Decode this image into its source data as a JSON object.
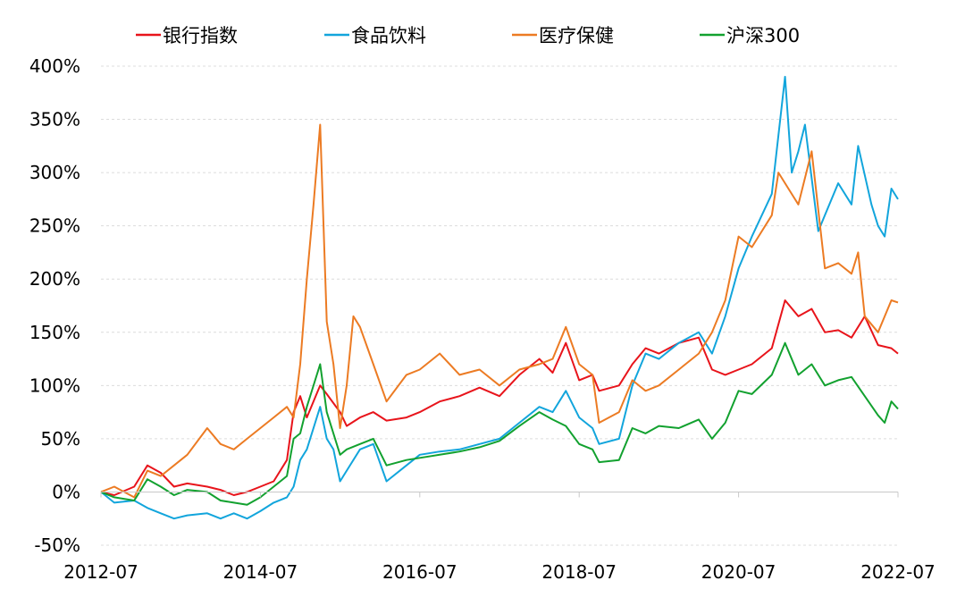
{
  "chart_data": {
    "type": "line",
    "title": "",
    "xlabel": "",
    "ylabel": "",
    "x_ticks": [
      "2012-07",
      "2014-07",
      "2016-07",
      "2018-07",
      "2020-07",
      "2022-07"
    ],
    "x_range": [
      "2012-07",
      "2022-07"
    ],
    "y_ticks": [
      "-50%",
      "0%",
      "50%",
      "100%",
      "150%",
      "200%",
      "250%",
      "300%",
      "350%",
      "400%"
    ],
    "ylim": [
      -50,
      400
    ],
    "y_unit": "%",
    "grid": "horizontal dashed",
    "legend": "top",
    "series": [
      {
        "name": "银行指数",
        "color": "#e8141b",
        "points": [
          [
            "2012-07",
            0
          ],
          [
            "2012-09",
            -3
          ],
          [
            "2012-12",
            5
          ],
          [
            "2013-02",
            25
          ],
          [
            "2013-04",
            18
          ],
          [
            "2013-06",
            5
          ],
          [
            "2013-08",
            8
          ],
          [
            "2013-11",
            5
          ],
          [
            "2014-01",
            2
          ],
          [
            "2014-03",
            -3
          ],
          [
            "2014-05",
            0
          ],
          [
            "2014-07",
            5
          ],
          [
            "2014-09",
            10
          ],
          [
            "2014-11",
            30
          ],
          [
            "2014-12",
            75
          ],
          [
            "2015-01",
            90
          ],
          [
            "2015-02",
            70
          ],
          [
            "2015-04",
            100
          ],
          [
            "2015-05",
            92
          ],
          [
            "2015-07",
            75
          ],
          [
            "2015-08",
            62
          ],
          [
            "2015-10",
            70
          ],
          [
            "2015-12",
            75
          ],
          [
            "2016-02",
            67
          ],
          [
            "2016-05",
            70
          ],
          [
            "2016-07",
            75
          ],
          [
            "2016-10",
            85
          ],
          [
            "2017-01",
            90
          ],
          [
            "2017-04",
            98
          ],
          [
            "2017-07",
            90
          ],
          [
            "2017-10",
            110
          ],
          [
            "2018-01",
            125
          ],
          [
            "2018-03",
            112
          ],
          [
            "2018-05",
            140
          ],
          [
            "2018-07",
            105
          ],
          [
            "2018-09",
            110
          ],
          [
            "2018-10",
            95
          ],
          [
            "2019-01",
            100
          ],
          [
            "2019-03",
            120
          ],
          [
            "2019-05",
            135
          ],
          [
            "2019-07",
            130
          ],
          [
            "2019-10",
            140
          ],
          [
            "2020-01",
            145
          ],
          [
            "2020-03",
            115
          ],
          [
            "2020-05",
            110
          ],
          [
            "2020-07",
            115
          ],
          [
            "2020-09",
            120
          ],
          [
            "2020-12",
            135
          ],
          [
            "2021-02",
            180
          ],
          [
            "2021-04",
            165
          ],
          [
            "2021-06",
            172
          ],
          [
            "2021-08",
            150
          ],
          [
            "2021-10",
            152
          ],
          [
            "2021-12",
            145
          ],
          [
            "2022-02",
            165
          ],
          [
            "2022-04",
            138
          ],
          [
            "2022-06",
            135
          ],
          [
            "2022-07",
            130
          ]
        ]
      },
      {
        "name": "食品饮料",
        "color": "#12a5dc",
        "points": [
          [
            "2012-07",
            0
          ],
          [
            "2012-09",
            -10
          ],
          [
            "2012-12",
            -8
          ],
          [
            "2013-02",
            -15
          ],
          [
            "2013-04",
            -20
          ],
          [
            "2013-06",
            -25
          ],
          [
            "2013-08",
            -22
          ],
          [
            "2013-11",
            -20
          ],
          [
            "2014-01",
            -25
          ],
          [
            "2014-03",
            -20
          ],
          [
            "2014-05",
            -25
          ],
          [
            "2014-07",
            -18
          ],
          [
            "2014-09",
            -10
          ],
          [
            "2014-11",
            -5
          ],
          [
            "2014-12",
            5
          ],
          [
            "2015-01",
            30
          ],
          [
            "2015-02",
            40
          ],
          [
            "2015-04",
            80
          ],
          [
            "2015-05",
            50
          ],
          [
            "2015-06",
            40
          ],
          [
            "2015-07",
            10
          ],
          [
            "2015-08",
            20
          ],
          [
            "2015-10",
            40
          ],
          [
            "2015-12",
            45
          ],
          [
            "2016-02",
            10
          ],
          [
            "2016-05",
            25
          ],
          [
            "2016-07",
            35
          ],
          [
            "2016-10",
            38
          ],
          [
            "2017-01",
            40
          ],
          [
            "2017-04",
            45
          ],
          [
            "2017-07",
            50
          ],
          [
            "2017-10",
            65
          ],
          [
            "2018-01",
            80
          ],
          [
            "2018-03",
            75
          ],
          [
            "2018-05",
            95
          ],
          [
            "2018-07",
            70
          ],
          [
            "2018-09",
            60
          ],
          [
            "2018-10",
            45
          ],
          [
            "2019-01",
            50
          ],
          [
            "2019-03",
            100
          ],
          [
            "2019-05",
            130
          ],
          [
            "2019-07",
            125
          ],
          [
            "2019-10",
            140
          ],
          [
            "2020-01",
            150
          ],
          [
            "2020-03",
            130
          ],
          [
            "2020-05",
            165
          ],
          [
            "2020-07",
            210
          ],
          [
            "2020-09",
            240
          ],
          [
            "2020-12",
            280
          ],
          [
            "2021-01",
            335
          ],
          [
            "2021-02",
            390
          ],
          [
            "2021-03",
            300
          ],
          [
            "2021-04",
            320
          ],
          [
            "2021-05",
            345
          ],
          [
            "2021-07",
            245
          ],
          [
            "2021-08",
            260
          ],
          [
            "2021-10",
            290
          ],
          [
            "2021-12",
            270
          ],
          [
            "2022-01",
            325
          ],
          [
            "2022-03",
            270
          ],
          [
            "2022-04",
            250
          ],
          [
            "2022-05",
            240
          ],
          [
            "2022-06",
            285
          ],
          [
            "2022-07",
            275
          ]
        ]
      },
      {
        "name": "医疗保健",
        "color": "#ec7b23",
        "points": [
          [
            "2012-07",
            0
          ],
          [
            "2012-09",
            5
          ],
          [
            "2012-12",
            -5
          ],
          [
            "2013-02",
            20
          ],
          [
            "2013-04",
            15
          ],
          [
            "2013-06",
            25
          ],
          [
            "2013-08",
            35
          ],
          [
            "2013-11",
            60
          ],
          [
            "2014-01",
            45
          ],
          [
            "2014-03",
            40
          ],
          [
            "2014-05",
            50
          ],
          [
            "2014-07",
            60
          ],
          [
            "2014-09",
            70
          ],
          [
            "2014-11",
            80
          ],
          [
            "2014-12",
            70
          ],
          [
            "2015-01",
            120
          ],
          [
            "2015-02",
            200
          ],
          [
            "2015-03",
            270
          ],
          [
            "2015-04",
            345
          ],
          [
            "2015-05",
            160
          ],
          [
            "2015-06",
            120
          ],
          [
            "2015-07",
            60
          ],
          [
            "2015-08",
            100
          ],
          [
            "2015-09",
            165
          ],
          [
            "2015-10",
            155
          ],
          [
            "2015-12",
            120
          ],
          [
            "2016-02",
            85
          ],
          [
            "2016-05",
            110
          ],
          [
            "2016-07",
            115
          ],
          [
            "2016-10",
            130
          ],
          [
            "2017-01",
            110
          ],
          [
            "2017-04",
            115
          ],
          [
            "2017-07",
            100
          ],
          [
            "2017-10",
            115
          ],
          [
            "2018-01",
            120
          ],
          [
            "2018-03",
            125
          ],
          [
            "2018-05",
            155
          ],
          [
            "2018-07",
            120
          ],
          [
            "2018-09",
            110
          ],
          [
            "2018-10",
            65
          ],
          [
            "2019-01",
            75
          ],
          [
            "2019-03",
            105
          ],
          [
            "2019-05",
            95
          ],
          [
            "2019-07",
            100
          ],
          [
            "2019-10",
            115
          ],
          [
            "2020-01",
            130
          ],
          [
            "2020-03",
            150
          ],
          [
            "2020-05",
            180
          ],
          [
            "2020-07",
            240
          ],
          [
            "2020-09",
            230
          ],
          [
            "2020-12",
            260
          ],
          [
            "2021-01",
            300
          ],
          [
            "2021-02",
            290
          ],
          [
            "2021-04",
            270
          ],
          [
            "2021-06",
            320
          ],
          [
            "2021-08",
            210
          ],
          [
            "2021-10",
            215
          ],
          [
            "2021-12",
            205
          ],
          [
            "2022-01",
            225
          ],
          [
            "2022-02",
            165
          ],
          [
            "2022-04",
            150
          ],
          [
            "2022-06",
            180
          ],
          [
            "2022-07",
            178
          ]
        ]
      },
      {
        "name": "沪深300",
        "color": "#12a12f",
        "points": [
          [
            "2012-07",
            0
          ],
          [
            "2012-09",
            -5
          ],
          [
            "2012-12",
            -8
          ],
          [
            "2013-02",
            12
          ],
          [
            "2013-04",
            5
          ],
          [
            "2013-06",
            -3
          ],
          [
            "2013-08",
            2
          ],
          [
            "2013-11",
            0
          ],
          [
            "2014-01",
            -8
          ],
          [
            "2014-03",
            -10
          ],
          [
            "2014-05",
            -12
          ],
          [
            "2014-07",
            -5
          ],
          [
            "2014-09",
            5
          ],
          [
            "2014-11",
            15
          ],
          [
            "2014-12",
            50
          ],
          [
            "2015-01",
            55
          ],
          [
            "2015-02",
            80
          ],
          [
            "2015-04",
            120
          ],
          [
            "2015-05",
            75
          ],
          [
            "2015-07",
            35
          ],
          [
            "2015-08",
            40
          ],
          [
            "2015-10",
            45
          ],
          [
            "2015-12",
            50
          ],
          [
            "2016-02",
            25
          ],
          [
            "2016-05",
            30
          ],
          [
            "2016-07",
            32
          ],
          [
            "2016-10",
            35
          ],
          [
            "2017-01",
            38
          ],
          [
            "2017-04",
            42
          ],
          [
            "2017-07",
            48
          ],
          [
            "2017-10",
            62
          ],
          [
            "2018-01",
            75
          ],
          [
            "2018-03",
            68
          ],
          [
            "2018-05",
            62
          ],
          [
            "2018-07",
            45
          ],
          [
            "2018-09",
            40
          ],
          [
            "2018-10",
            28
          ],
          [
            "2019-01",
            30
          ],
          [
            "2019-03",
            60
          ],
          [
            "2019-05",
            55
          ],
          [
            "2019-07",
            62
          ],
          [
            "2019-10",
            60
          ],
          [
            "2020-01",
            68
          ],
          [
            "2020-03",
            50
          ],
          [
            "2020-05",
            65
          ],
          [
            "2020-07",
            95
          ],
          [
            "2020-09",
            92
          ],
          [
            "2020-12",
            110
          ],
          [
            "2021-02",
            140
          ],
          [
            "2021-04",
            110
          ],
          [
            "2021-06",
            120
          ],
          [
            "2021-08",
            100
          ],
          [
            "2021-10",
            105
          ],
          [
            "2021-12",
            108
          ],
          [
            "2022-02",
            90
          ],
          [
            "2022-04",
            72
          ],
          [
            "2022-05",
            65
          ],
          [
            "2022-06",
            85
          ],
          [
            "2022-07",
            78
          ]
        ]
      }
    ]
  }
}
